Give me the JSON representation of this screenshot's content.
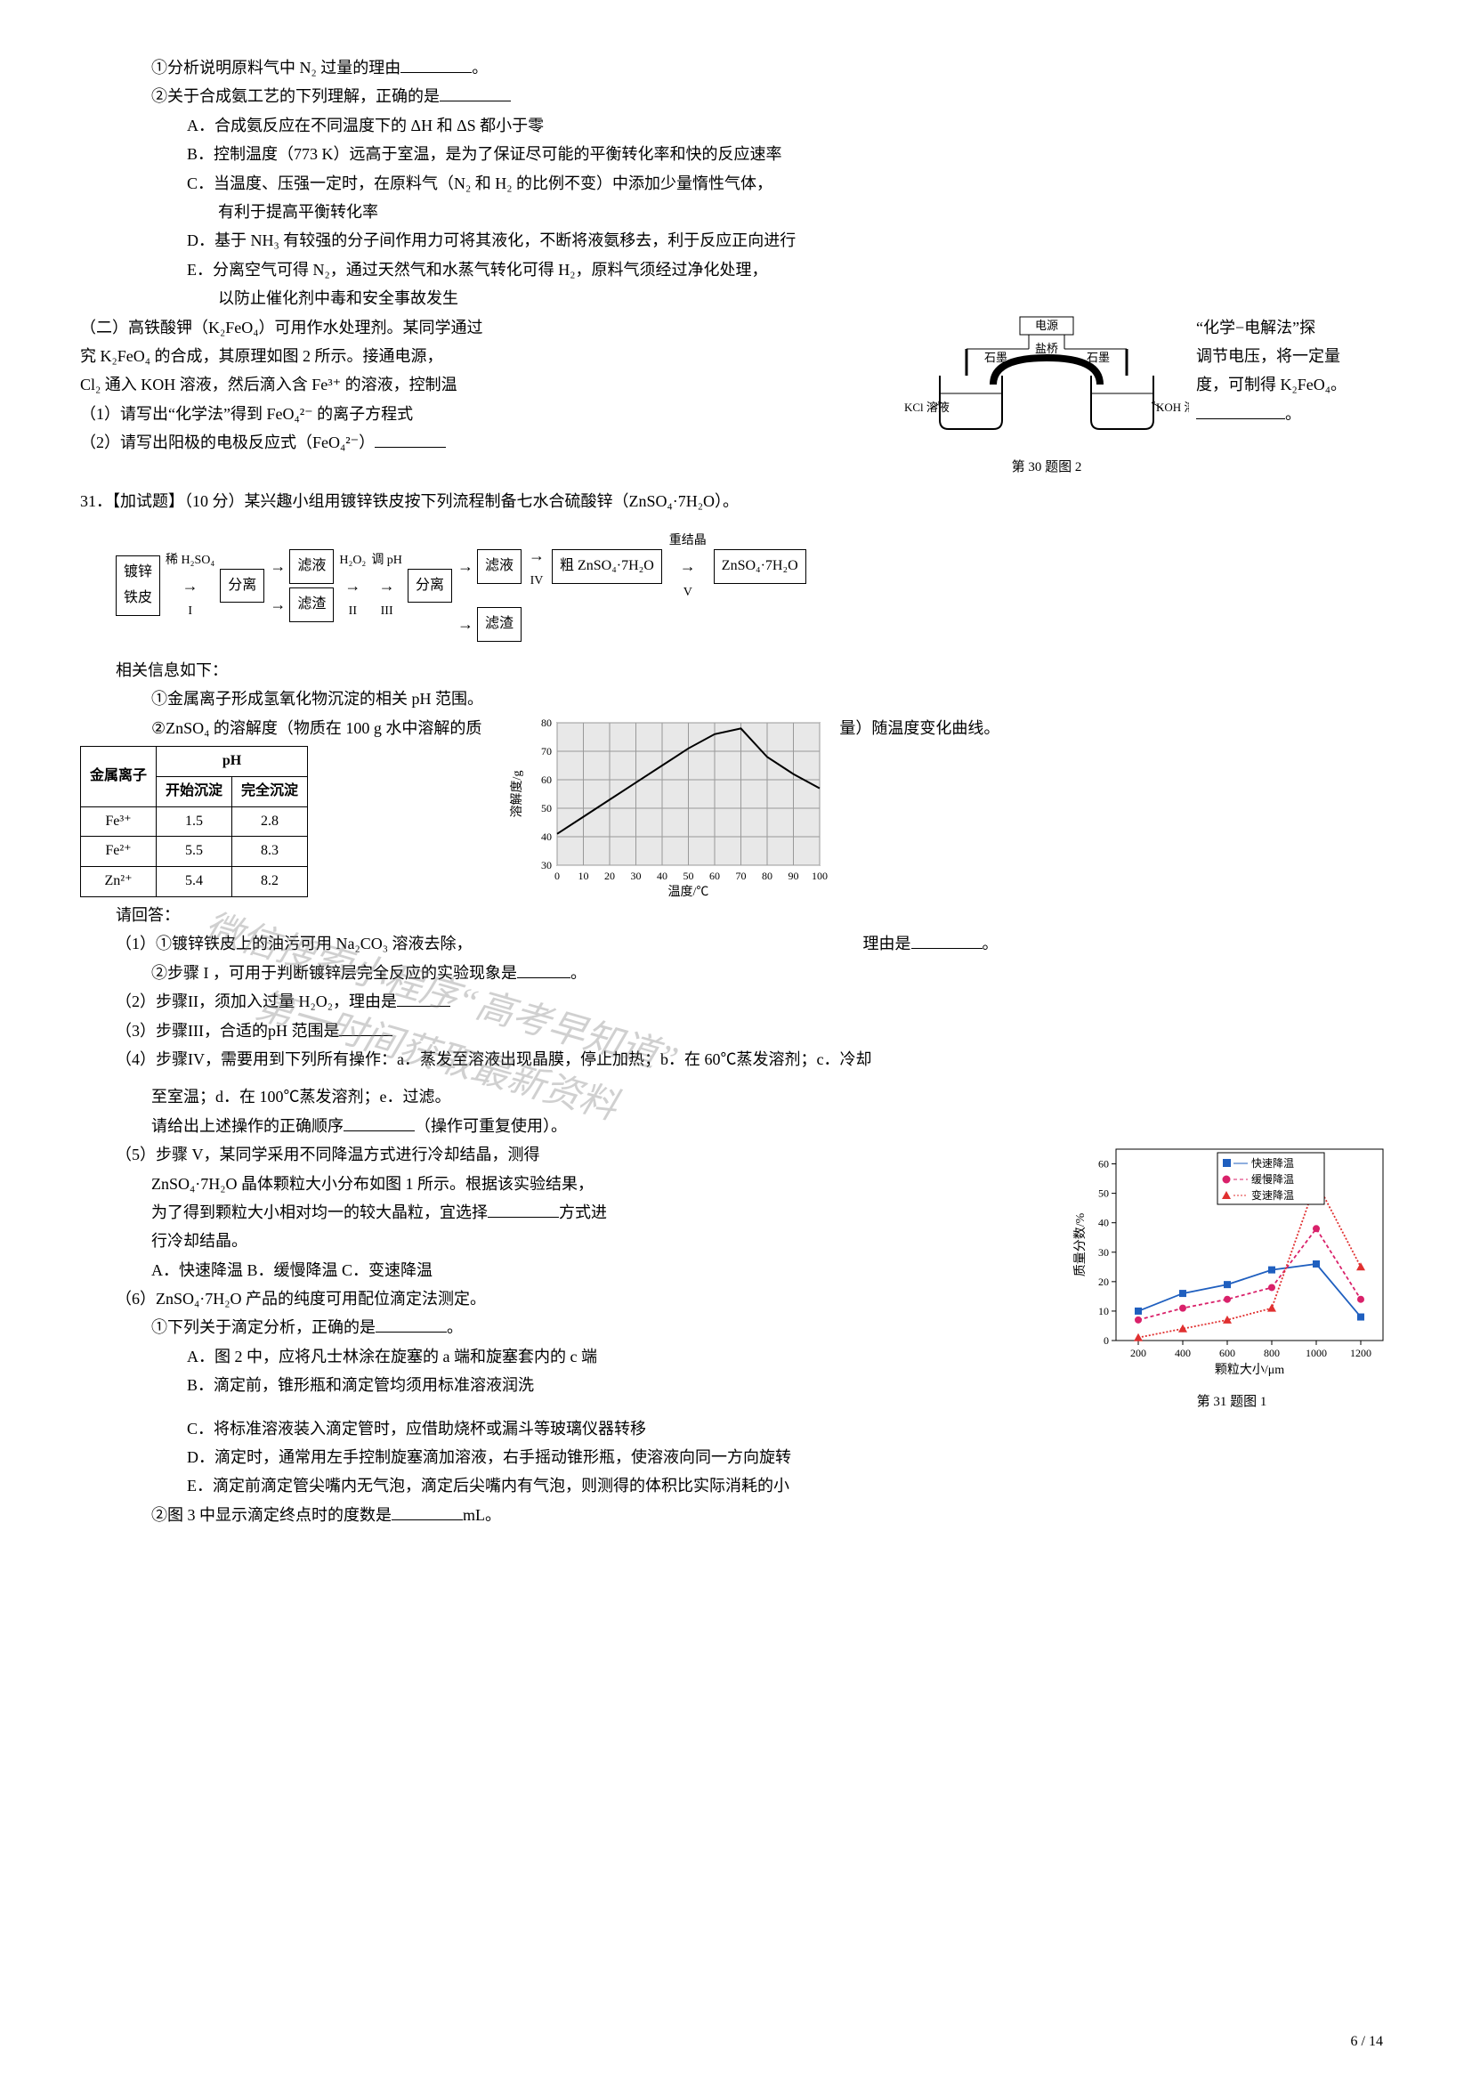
{
  "q30": {
    "item1": "①分析说明原料气中 N₂ 过量的理由",
    "item1_end": "。",
    "item2": "②关于合成氨工艺的下列理解，正确的是",
    "optA": "A．合成氨反应在不同温度下的 ΔH 和 ΔS 都小于零",
    "optB": "B．控制温度（773 K）远高于室温，是为了保证尽可能的平衡转化率和快的反应速率",
    "optC": "C．当温度、压强一定时，在原料气（N₂ 和 H₂ 的比例不变）中添加少量惰性气体，",
    "optC2": "有利于提高平衡转化率",
    "optD": "D．基于 NH₃ 有较强的分子间作用力可将其液化，不断将液氨移去，利于反应正向进行",
    "optE": "E．分离空气可得 N₂，通过天然气和水蒸气转化可得 H₂，原料气须经过净化处理，",
    "optE2": "以防止催化剂中毒和安全事故发生",
    "part2_a": "（二）高铁酸钾（K₂FeO₄）可用作水处理剂。某同学通过",
    "part2_b": "究 K₂FeO₄ 的合成，其原理如图 2 所示。接通电源，",
    "part2_c": "Cl₂ 通入 KOH 溶液，然后滴入含 Fe³⁺ 的溶液，控制温",
    "part2_right1": "“化学−电解法”探",
    "part2_right2": "调节电压，将一定量",
    "part2_right3": "度，可制得 K₂FeO₄。",
    "sub1": "（1）请写出“化学法”得到 FeO₄²⁻ 的离子方程式",
    "sub1_end": "。",
    "sub2": "（2）请写出阳极的电极反应式（FeO₄²⁻）",
    "fig2_caption": "第 30 题图 2",
    "fig2": {
      "power_label": "电源",
      "bridge_label": "盐桥",
      "left_elec": "石墨",
      "right_elec": "石墨",
      "left_sol": "KCl 溶液",
      "right_sol": "KOH 溶液",
      "stroke": "#000000",
      "bg": "#ffffff"
    }
  },
  "q31": {
    "head": "31．【加试题】（10 分）某兴趣小组用镀锌铁皮按下列流程制备七水合硫酸锌（ZnSO₄·7H₂O）。",
    "flow": {
      "start": "镀锌\n铁皮",
      "step1_top": "稀 H₂SO₄",
      "step1_bot": "I",
      "sep": "分离",
      "filtrate": "滤液",
      "residue": "滤渣",
      "step2_top": "H₂O₂",
      "step2_bot": "II",
      "step3_top": "调 pH",
      "step3_bot": "III",
      "sep2": "分离",
      "filtrate4": "滤液",
      "step4": "IV",
      "crude": "粗 ZnSO₄·7H₂O",
      "step5_top": "重结晶",
      "step5_bot": "V",
      "final": "ZnSO₄·7H₂O"
    },
    "info_head": "相关信息如下：",
    "info1": "①金属离子形成氢氧化物沉淀的相关 pH 范围。",
    "info2_a": "②ZnSO₄ 的溶解度（物质在 100 g 水中溶解的质",
    "info2_b": "量）随温度变化曲线。",
    "ph_table": {
      "col_ion": "金属离子",
      "col_ph": "pH",
      "col_start": "开始沉淀",
      "col_end": "完全沉淀",
      "rows": [
        {
          "ion": "Fe³⁺",
          "start": "1.5",
          "end": "2.8"
        },
        {
          "ion": "Fe²⁺",
          "start": "5.5",
          "end": "8.3"
        },
        {
          "ion": "Zn²⁺",
          "start": "5.4",
          "end": "8.2"
        }
      ]
    },
    "solubility_chart": {
      "type": "line",
      "xlabel": "温度/℃",
      "ylabel": "溶解度/g",
      "xlim": [
        0,
        100
      ],
      "ylim": [
        30,
        80
      ],
      "xticks": [
        0,
        10,
        20,
        30,
        40,
        50,
        60,
        70,
        80,
        90,
        100
      ],
      "yticks": [
        30,
        40,
        50,
        60,
        70,
        80
      ],
      "grid_color": "#999999",
      "bg_color": "#e8e8e8",
      "line_color": "#000000",
      "line_width": 2,
      "points": [
        {
          "x": 0,
          "y": 41
        },
        {
          "x": 10,
          "y": 47
        },
        {
          "x": 20,
          "y": 53
        },
        {
          "x": 30,
          "y": 59
        },
        {
          "x": 40,
          "y": 65
        },
        {
          "x": 50,
          "y": 71
        },
        {
          "x": 60,
          "y": 76
        },
        {
          "x": 70,
          "y": 78
        },
        {
          "x": 80,
          "y": 68
        },
        {
          "x": 90,
          "y": 62
        },
        {
          "x": 100,
          "y": 57
        }
      ]
    },
    "ask": "请回答：",
    "s1a": "（1）①镀锌铁皮上的油污可用 Na₂CO₃ 溶液去除，",
    "s1a_reason": "理由是",
    "s1a_end": "。",
    "s1b": "②步骤 I ，可用于判断镀锌层完全反应的实验现象是",
    "s1b_end": "。",
    "s2": "（2）步骤II，须加入过量 H₂O₂，理由是",
    "s3": "（3）步骤III，合适的pH 范围是",
    "s4a": "（4）步骤IV，需要用到下列所有操作：a．蒸发至溶液出现晶膜，停止加热；b．在 60℃蒸发溶剂；c．冷却",
    "s4b": "至室温；d．在 100℃蒸发溶剂；e．过滤。",
    "s4c": "请给出上述操作的正确顺序",
    "s4c2": "（操作可重复使用）。",
    "s5a": "（5）步骤 V，某同学采用不同降温方式进行冷却结晶，测得",
    "s5b": "ZnSO₄·7H₂O 晶体颗粒大小分布如图 1 所示。根据该实验结果，",
    "s5c_a": "为了得到颗粒大小相对均一的较大晶粒，宜选择",
    "s5c_b": "方式进",
    "s5d": "行冷却结晶。",
    "s5_opts": "A．快速降温    B．缓慢降温   C．变速降温",
    "s6": "（6）ZnSO₄·7H₂O 产品的纯度可用配位滴定法测定。",
    "s6_1": "①下列关于滴定分析，正确的是",
    "s6_1_end": "。",
    "s6A": "A．图 2 中，应将凡士林涂在旋塞的 a 端和旋塞套内的 c 端",
    "s6B": "B．滴定前，锥形瓶和滴定管均须用标准溶液润洗",
    "s6C": "C．将标准溶液装入滴定管时，应借助烧杯或漏斗等玻璃仪器转移",
    "s6D": "D．滴定时，通常用左手控制旋塞滴加溶液，右手摇动锥形瓶，使溶液向同一方向旋转",
    "s6E": "E．滴定前滴定管尖嘴内无气泡，滴定后尖嘴内有气泡，则测得的体积比实际消耗的小",
    "s6_2a": "②图 3 中显示滴定终点时的度数是",
    "s6_2b": "mL。",
    "particle_chart": {
      "type": "line-scatter",
      "xlabel": "颗粒大小/μm",
      "ylabel": "质量分数/%",
      "xlim": [
        100,
        1300
      ],
      "ylim": [
        0,
        65
      ],
      "xticks": [
        200,
        400,
        600,
        800,
        1000,
        1200
      ],
      "yticks": [
        0,
        10,
        20,
        30,
        40,
        50,
        60
      ],
      "legend": [
        "快速降温",
        "缓慢降温",
        "变速降温"
      ],
      "colors": [
        "#1f5fbf",
        "#d9216a",
        "#e03030"
      ],
      "markers": [
        "square",
        "circle",
        "triangle"
      ],
      "series": [
        [
          {
            "x": 200,
            "y": 10
          },
          {
            "x": 400,
            "y": 16
          },
          {
            "x": 600,
            "y": 19
          },
          {
            "x": 800,
            "y": 24
          },
          {
            "x": 1000,
            "y": 26
          },
          {
            "x": 1200,
            "y": 8
          }
        ],
        [
          {
            "x": 200,
            "y": 7
          },
          {
            "x": 400,
            "y": 11
          },
          {
            "x": 600,
            "y": 14
          },
          {
            "x": 800,
            "y": 18
          },
          {
            "x": 1000,
            "y": 38
          },
          {
            "x": 1200,
            "y": 14
          }
        ],
        [
          {
            "x": 200,
            "y": 1
          },
          {
            "x": 400,
            "y": 4
          },
          {
            "x": 600,
            "y": 7
          },
          {
            "x": 800,
            "y": 11
          },
          {
            "x": 1000,
            "y": 54
          },
          {
            "x": 1200,
            "y": 25
          }
        ]
      ],
      "caption": "第 31 题图 1"
    }
  },
  "watermark": {
    "line1": "微信搜索小程序“高考早知道”",
    "line2": "第一时间获取最新资料"
  },
  "page_num": "6 / 14"
}
